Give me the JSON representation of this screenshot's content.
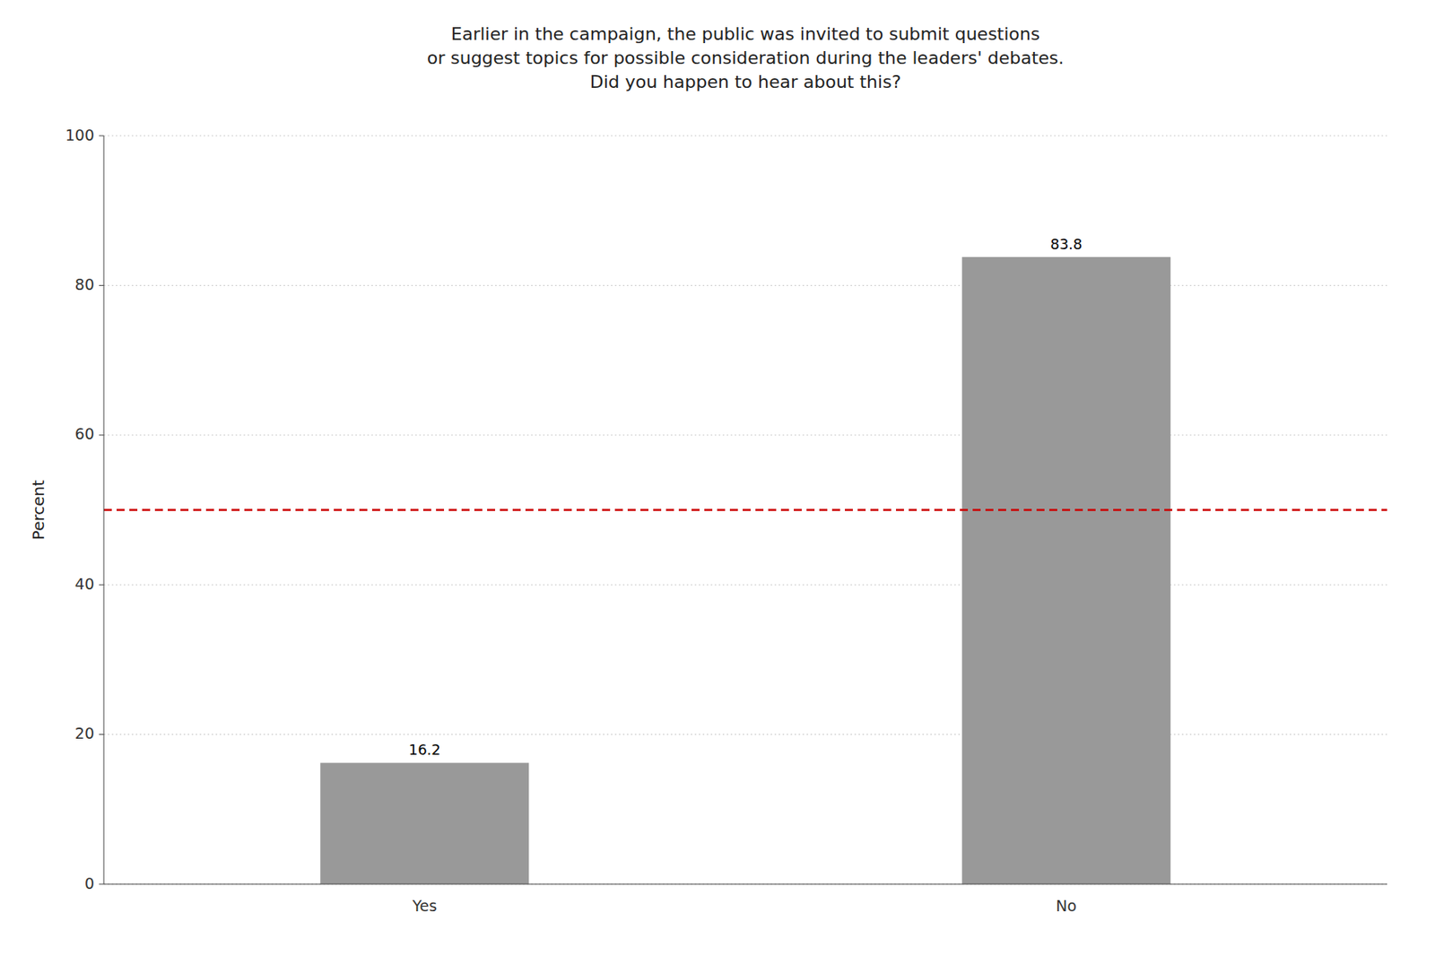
{
  "chart_data": {
    "type": "bar",
    "title": "Earlier in the campaign, the public was invited to submit questions\nor suggest topics for possible consideration during the leaders' debates.\nDid you happen to hear about this?",
    "ylabel": "Percent",
    "categories": [
      "Yes",
      "No"
    ],
    "values": [
      16.2,
      83.8
    ],
    "color": "#999999",
    "ylim": [
      0,
      100
    ],
    "yticks": [
      0,
      20,
      40,
      60,
      80,
      100
    ],
    "grid": true,
    "data_labels": true,
    "reference_line": {
      "value": 50,
      "color": "#cc0000",
      "line_style": "dashed"
    }
  }
}
